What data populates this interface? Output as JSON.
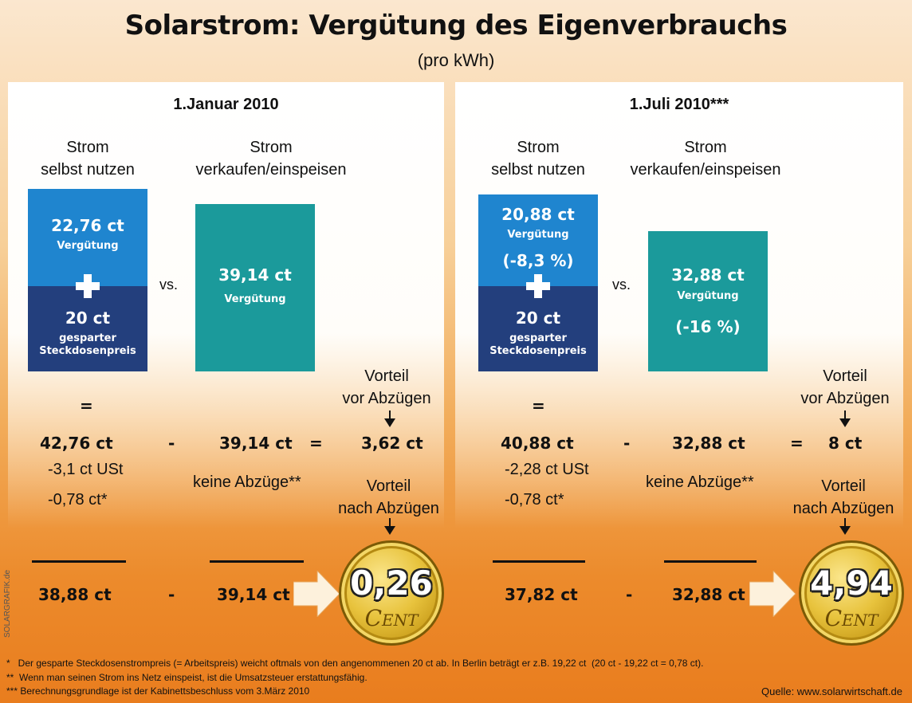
{
  "title": "Solarstrom: Vergütung des Eigenverbrauchs",
  "subtitle": "(pro kWh)",
  "side_label": "SOLARGRAFIK.de",
  "panels": [
    {
      "date": "1.Januar 2010",
      "col_self": [
        "Strom",
        "selbst nutzen"
      ],
      "col_sell": [
        "Strom",
        "verkaufen/einspeisen"
      ],
      "self_box": {
        "amount": "22,76 ct",
        "label": "Vergütung"
      },
      "saved_box": {
        "amount": "20 ct",
        "label1": "gesparter",
        "label2": "Steckdosenpreis"
      },
      "sell_box": {
        "amount": "39,14 ct",
        "label": "Vergütung"
      },
      "vs": "vs.",
      "eq_sign": "=",
      "total_self": "42,76 ct",
      "minus": "-",
      "sell_value": "39,14 ct",
      "equals": "=",
      "advantage_before": "3,62 ct",
      "before_label": [
        "Vorteil",
        "vor Abzügen"
      ],
      "deduction_1": "-3,1 ct USt",
      "deduction_2": "-0,78 ct*",
      "no_deduction": "keine Abzüge**",
      "after_label": [
        "Vorteil",
        "nach Abzügen"
      ],
      "net_self": "38,88 ct",
      "net_sell": "39,14 ct",
      "coin_value": "0,26",
      "coin_label": "Cent"
    },
    {
      "date": "1.Juli 2010***",
      "col_self": [
        "Strom",
        "selbst nutzen"
      ],
      "col_sell": [
        "Strom",
        "verkaufen/einspeisen"
      ],
      "self_box": {
        "amount": "20,88 ct",
        "label": "Vergütung",
        "change": "(-8,3 %)"
      },
      "saved_box": {
        "amount": "20 ct",
        "label1": "gesparter",
        "label2": "Steckdosenpreis"
      },
      "sell_box": {
        "amount": "32,88 ct",
        "label": "Vergütung",
        "change": "(-16 %)"
      },
      "vs": "vs.",
      "eq_sign": "=",
      "total_self": "40,88 ct",
      "minus": "-",
      "sell_value": "32,88 ct",
      "equals": "=",
      "advantage_before": "8 ct",
      "before_label": [
        "Vorteil",
        "vor Abzügen"
      ],
      "deduction_1": "-2,28 ct USt",
      "deduction_2": "-0,78 ct*",
      "no_deduction": "keine Abzüge**",
      "after_label": [
        "Vorteil",
        "nach Abzügen"
      ],
      "net_self": "37,82 ct",
      "net_sell": "32,88 ct",
      "coin_value": "4,94",
      "coin_label": "Cent"
    }
  ],
  "footnotes": [
    "*   Der gesparte Steckdosenstrompreis (= Arbeitspreis) weicht oftmals von den angenommenen 20 ct ab. In Berlin beträgt er z.B. 19,22 ct  (20 ct - 19,22 ct = 0,78 ct).",
    "**  Wenn man seinen Strom ins Netz einspeist, ist die Umsatzsteuer erstattungsfähig.",
    "*** Berechnungsgrundlage ist der Kabinettsbeschluss vom 3.März 2010"
  ],
  "source": "Quelle: www.solarwirtschaft.de",
  "colors": {
    "blue": "#1f85cf",
    "navy": "#233f7d",
    "teal": "#1b9a9b",
    "gold": "#e8c33d",
    "arrow": "#fdf1dc"
  }
}
